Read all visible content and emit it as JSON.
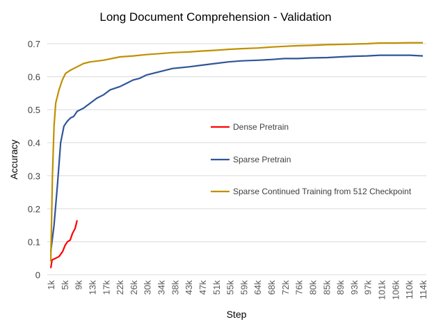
{
  "chart_data": {
    "type": "line",
    "title": "Long Document Comprehension - Validation",
    "xlabel": "Step",
    "ylabel": "Accuracy",
    "ylim": [
      0,
      0.7
    ],
    "xlim_k": [
      1,
      114
    ],
    "yticks": [
      "0",
      "0.1",
      "0.2",
      "0.3",
      "0.4",
      "0.5",
      "0.6",
      "0.7"
    ],
    "xtick_labels": [
      "1k",
      "5k",
      "9k",
      "13k",
      "17k",
      "22k",
      "26k",
      "30k",
      "34k",
      "38k",
      "43k",
      "47k",
      "51k",
      "55k",
      "59k",
      "64k",
      "68k",
      "72k",
      "76k",
      "80k",
      "85k",
      "89k",
      "93k",
      "97k",
      "101k",
      "106k",
      "110k",
      "114k"
    ],
    "grid": "horizontal",
    "legend_placement": "center-right",
    "series": [
      {
        "name": "Dense Pretrain",
        "color": "#ff0000",
        "x": [
          1,
          1.4,
          2.5,
          3.5,
          4.6,
          5.4,
          6.1,
          6.9,
          7.6,
          8.4,
          9.0
        ],
        "y": [
          0.02,
          0.045,
          0.05,
          0.055,
          0.07,
          0.09,
          0.1,
          0.105,
          0.125,
          0.14,
          0.165
        ]
      },
      {
        "name": "Sparse Pretrain",
        "color": "#2f5597",
        "x": [
          1,
          2,
          3,
          4,
          5,
          6,
          7,
          8,
          9,
          11,
          13,
          15,
          17,
          19,
          22,
          24,
          26,
          28,
          30,
          34,
          38,
          43,
          47,
          51,
          55,
          59,
          64,
          68,
          72,
          76,
          80,
          85,
          89,
          93,
          97,
          101,
          106,
          110,
          114
        ],
        "y": [
          0.07,
          0.15,
          0.27,
          0.4,
          0.45,
          0.465,
          0.475,
          0.48,
          0.495,
          0.505,
          0.52,
          0.535,
          0.545,
          0.56,
          0.57,
          0.58,
          0.59,
          0.595,
          0.605,
          0.615,
          0.625,
          0.63,
          0.635,
          0.64,
          0.645,
          0.648,
          0.65,
          0.652,
          0.655,
          0.655,
          0.657,
          0.658,
          0.66,
          0.662,
          0.663,
          0.665,
          0.665,
          0.665,
          0.663
        ]
      },
      {
        "name": "Sparse Continued Training from 512 Checkpoint",
        "color": "#bf9000",
        "x": [
          1,
          1.5,
          2,
          2.5,
          3.5,
          4.5,
          5.5,
          7,
          9,
          11,
          13,
          17,
          22,
          26,
          30,
          34,
          38,
          43,
          47,
          51,
          55,
          59,
          64,
          68,
          72,
          76,
          80,
          85,
          89,
          93,
          97,
          101,
          106,
          110,
          114
        ],
        "y": [
          0.04,
          0.3,
          0.45,
          0.52,
          0.56,
          0.59,
          0.61,
          0.62,
          0.63,
          0.64,
          0.645,
          0.65,
          0.66,
          0.663,
          0.667,
          0.67,
          0.673,
          0.675,
          0.678,
          0.68,
          0.683,
          0.685,
          0.687,
          0.69,
          0.692,
          0.694,
          0.695,
          0.697,
          0.698,
          0.699,
          0.7,
          0.702,
          0.702,
          0.703,
          0.703
        ]
      }
    ]
  }
}
